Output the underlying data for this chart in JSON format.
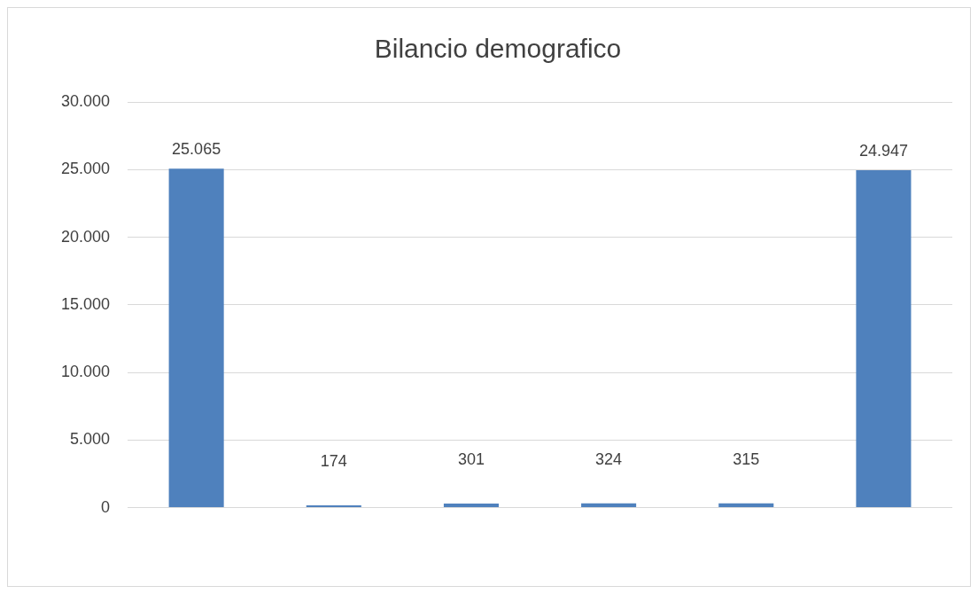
{
  "chart_data": {
    "type": "bar",
    "title": "Bilancio demografico",
    "categories": [
      null,
      null,
      null,
      null,
      null,
      null
    ],
    "values": [
      25065,
      174,
      301,
      324,
      315,
      24947
    ],
    "value_labels": [
      "25.065",
      "174",
      "301",
      "324",
      "315",
      "24.947"
    ],
    "color": "#4f81bd",
    "ylim": [
      0,
      30000
    ],
    "yticks": [
      {
        "value": 0,
        "label": "0"
      },
      {
        "value": 5000,
        "label": "5.000"
      },
      {
        "value": 10000,
        "label": "10.000"
      },
      {
        "value": 15000,
        "label": "15.000"
      },
      {
        "value": 20000,
        "label": "20.000"
      },
      {
        "value": 25000,
        "label": "25.000"
      },
      {
        "value": 30000,
        "label": "30.000"
      }
    ],
    "grid": "y",
    "legend": false
  }
}
